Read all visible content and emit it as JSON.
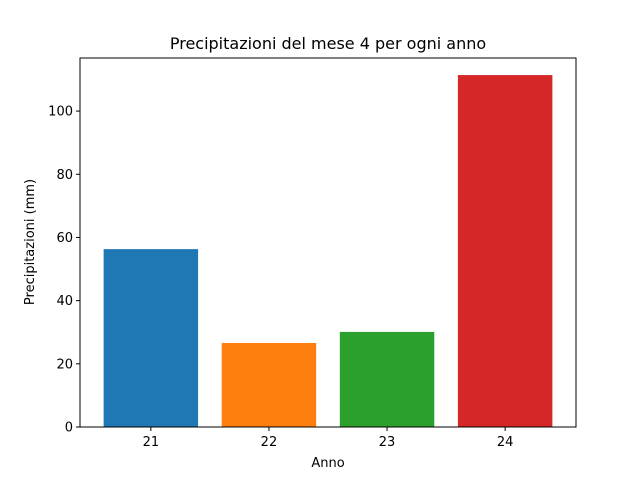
{
  "chart_data": {
    "type": "bar",
    "title": "Precipitazioni del mese 4 per ogni anno",
    "x_label": "Anno",
    "y_label": "Precipitazioni (mm)",
    "x": [
      21,
      22,
      23,
      24
    ],
    "values": [
      56.3,
      26.6,
      30.1,
      111.4
    ],
    "colors": [
      "#1f77b4",
      "#ff7f0e",
      "#2ca02c",
      "#d62728"
    ],
    "xlim": [
      20.4,
      24.6
    ],
    "xticks": [
      21,
      22,
      23,
      24
    ],
    "ylim": [
      0,
      116.8
    ],
    "yticks": [
      0,
      20,
      40,
      60,
      80,
      100
    ],
    "grid": false
  }
}
